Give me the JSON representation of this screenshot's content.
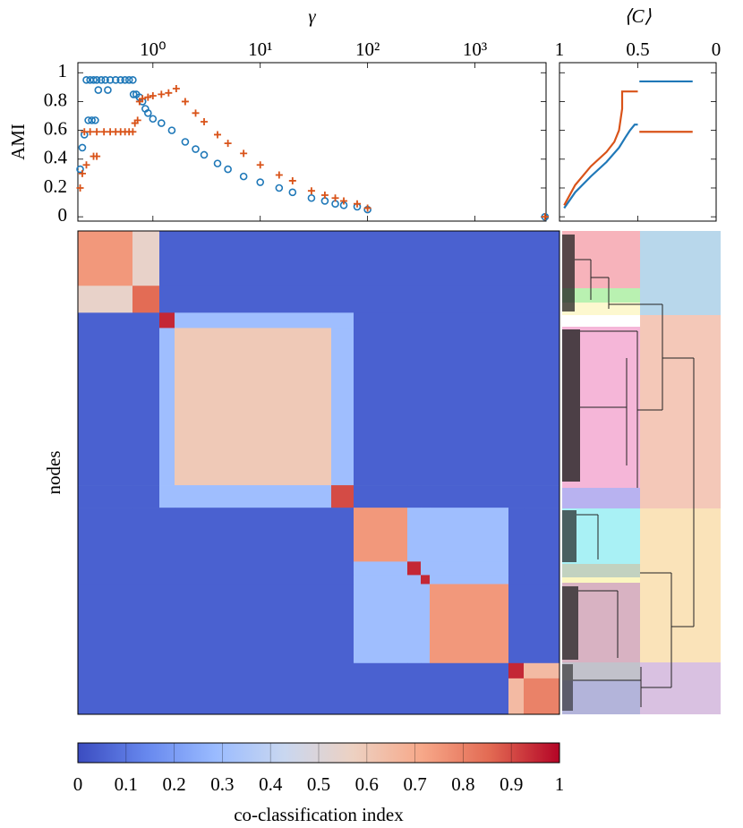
{
  "chart_data": [
    {
      "type": "scatter",
      "xlabel": "γ",
      "ylabel": "AMI",
      "xscale": "log",
      "xlim": [
        0.2,
        4600
      ],
      "ylim": [
        -0.03,
        1.07
      ],
      "xticks": [
        {
          "value": 1,
          "label": "10⁰"
        },
        {
          "value": 10,
          "label": "10¹"
        },
        {
          "value": 100,
          "label": "10²"
        },
        {
          "value": 1000,
          "label": "10³"
        }
      ],
      "yticks": [
        0,
        0.2,
        0.4,
        0.6,
        0.8,
        1
      ],
      "series": [
        {
          "color": "#1f78b8",
          "marker": "o",
          "x": [
            0.21,
            0.22,
            0.23,
            0.24,
            0.26,
            0.28,
            0.3,
            0.33,
            0.36,
            0.4,
            0.45,
            0.5,
            0.55,
            0.6,
            0.65,
            0.31,
            0.38,
            0.25,
            0.27,
            0.29,
            0.66,
            0.7,
            0.75,
            0.8,
            0.85,
            0.9,
            1,
            1.2,
            1.5,
            2,
            2.5,
            3,
            4,
            5,
            7,
            10,
            15,
            20,
            30,
            40,
            50,
            60,
            80,
            100,
            4500
          ],
          "values": [
            0.33,
            0.48,
            0.57,
            0.95,
            0.95,
            0.95,
            0.95,
            0.95,
            0.95,
            0.95,
            0.95,
            0.95,
            0.95,
            0.95,
            0.95,
            0.88,
            0.88,
            0.67,
            0.67,
            0.67,
            0.85,
            0.85,
            0.83,
            0.8,
            0.75,
            0.72,
            0.68,
            0.65,
            0.6,
            0.52,
            0.47,
            0.43,
            0.37,
            0.33,
            0.28,
            0.24,
            0.2,
            0.17,
            0.13,
            0.11,
            0.09,
            0.08,
            0.07,
            0.05,
            0
          ]
        },
        {
          "color": "#d95319",
          "marker": "+",
          "x": [
            0.21,
            0.22,
            0.24,
            0.28,
            0.3,
            0.23,
            0.26,
            0.3,
            0.35,
            0.4,
            0.45,
            0.5,
            0.55,
            0.6,
            0.65,
            0.68,
            0.72,
            0.75,
            0.8,
            0.9,
            1,
            1.2,
            1.4,
            1.65,
            2,
            2.5,
            3,
            4,
            5,
            7,
            10,
            15,
            20,
            30,
            40,
            50,
            60,
            80,
            100,
            4500
          ],
          "values": [
            0.2,
            0.3,
            0.36,
            0.42,
            0.42,
            0.59,
            0.59,
            0.59,
            0.59,
            0.59,
            0.59,
            0.59,
            0.59,
            0.59,
            0.59,
            0.65,
            0.67,
            0.8,
            0.82,
            0.83,
            0.84,
            0.85,
            0.86,
            0.89,
            0.8,
            0.72,
            0.66,
            0.57,
            0.51,
            0.44,
            0.36,
            0.29,
            0.25,
            0.18,
            0.15,
            0.13,
            0.11,
            0.09,
            0.06,
            0
          ]
        }
      ]
    },
    {
      "type": "line",
      "xlabel": "⟨C⟩",
      "xlim": [
        1,
        0
      ],
      "ylim": [
        -0.03,
        1.07
      ],
      "xticks": [
        1,
        0.5,
        0
      ],
      "series": [
        {
          "color": "#1f78b8",
          "x": [
            0.97,
            0.9,
            0.8,
            0.7,
            0.62,
            0.58,
            0.55,
            0.52,
            0.5,
            null,
            0.49,
            0.15
          ],
          "values": [
            0.06,
            0.17,
            0.28,
            0.38,
            0.48,
            0.55,
            0.6,
            0.64,
            0.64,
            null,
            0.94,
            0.94
          ]
        },
        {
          "color": "#d95319",
          "x": [
            0.97,
            0.9,
            0.8,
            0.7,
            0.65,
            0.62,
            0.6,
            0.6,
            0.5,
            null,
            0.49,
            0.15
          ],
          "values": [
            0.08,
            0.22,
            0.35,
            0.45,
            0.52,
            0.6,
            0.75,
            0.87,
            0.87,
            null,
            0.59,
            0.59
          ]
        }
      ]
    },
    {
      "type": "heatmap",
      "ylabel": "nodes",
      "block_edges": [
        0,
        61,
        91,
        108,
        283,
        308,
        368,
        383,
        393,
        481,
        498,
        538
      ],
      "values": [
        [
          0.75,
          0.55,
          0.05,
          0.05,
          0.05,
          0.05,
          0.05,
          0.05,
          0.05,
          0.05,
          0.05
        ],
        [
          0.55,
          0.85,
          0.05,
          0.05,
          0.05,
          0.05,
          0.05,
          0.05,
          0.05,
          0.05,
          0.05
        ],
        [
          0.05,
          0.05,
          0.95,
          0.3,
          0.3,
          0.05,
          0.05,
          0.05,
          0.05,
          0.05,
          0.05
        ],
        [
          0.05,
          0.05,
          0.3,
          0.6,
          0.3,
          0.05,
          0.05,
          0.05,
          0.05,
          0.05,
          0.05
        ],
        [
          0.05,
          0.05,
          0.3,
          0.3,
          0.9,
          0.05,
          0.05,
          0.05,
          0.05,
          0.05,
          0.05
        ],
        [
          0.05,
          0.05,
          0.05,
          0.05,
          0.05,
          0.75,
          0.3,
          0.3,
          0.3,
          0.05,
          0.05
        ],
        [
          0.05,
          0.05,
          0.05,
          0.05,
          0.05,
          0.3,
          0.95,
          0.3,
          0.3,
          0.05,
          0.05
        ],
        [
          0.05,
          0.05,
          0.05,
          0.05,
          0.05,
          0.3,
          0.3,
          0.95,
          0.3,
          0.05,
          0.05
        ],
        [
          0.05,
          0.05,
          0.05,
          0.05,
          0.05,
          0.3,
          0.3,
          0.3,
          0.75,
          0.05,
          0.05
        ],
        [
          0.05,
          0.05,
          0.05,
          0.05,
          0.05,
          0.05,
          0.05,
          0.05,
          0.05,
          0.95,
          0.65
        ],
        [
          0.05,
          0.05,
          0.05,
          0.05,
          0.05,
          0.05,
          0.05,
          0.05,
          0.05,
          0.65,
          0.8
        ]
      ],
      "clim": [
        0,
        1
      ],
      "colormap": [
        "#3b4cc0",
        "#6788ee",
        "#9abbff",
        "#c9d7f0",
        "#edd1c2",
        "#f7a889",
        "#e26952",
        "#b40426"
      ],
      "colorbar": {
        "label": "co-classification index",
        "ticks": [
          0,
          0.1,
          0.2,
          0.3,
          0.4,
          0.5,
          0.6,
          0.7,
          0.8,
          0.9,
          1
        ]
      }
    }
  ]
}
